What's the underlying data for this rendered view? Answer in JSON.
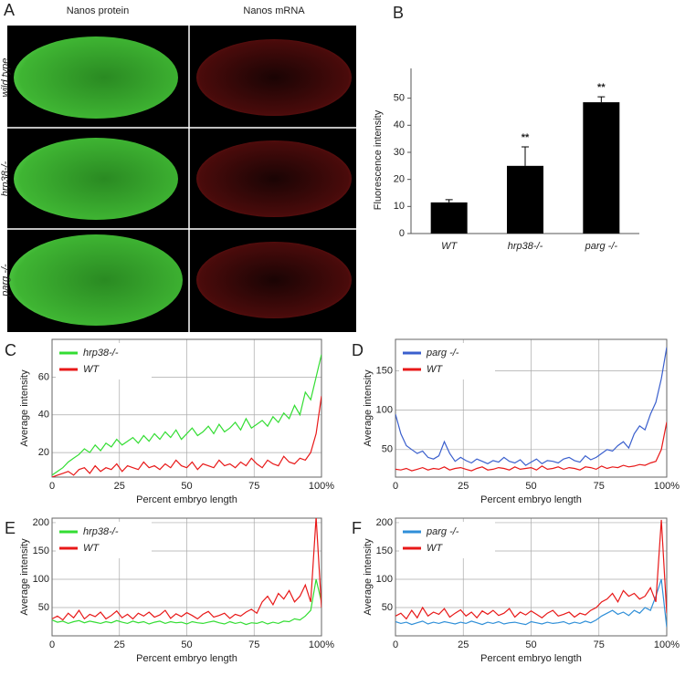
{
  "panel_a": {
    "label": "A",
    "columns": [
      "Nanos protein",
      "Nanos mRNA"
    ],
    "rows": [
      "wild type",
      "hrp38-/-",
      "parg -/-"
    ]
  },
  "chart_data": [
    {
      "type": "bar",
      "panel": "B",
      "ylabel": "Fluorescence intensity",
      "categories": [
        "WT",
        "hrp38-/-",
        "parg -/-"
      ],
      "values": [
        11.5,
        25,
        48.5
      ],
      "errors": [
        1,
        7,
        2
      ],
      "annotations": [
        null,
        "**",
        "**"
      ],
      "color": "#000000",
      "ylim": [
        0,
        61
      ],
      "yticks": [
        0,
        10,
        20,
        30,
        40,
        50
      ]
    },
    {
      "type": "line",
      "panel": "C",
      "xlabel": "Percent embryo length",
      "ylabel": "Average intensity",
      "legend": "upper left",
      "grid": true,
      "xlim": [
        0,
        100
      ],
      "xticks": [
        0,
        25,
        50,
        75,
        {
          "value": 100,
          "label": "100%"
        }
      ],
      "ylim": [
        7,
        80
      ],
      "yticks": [
        20,
        40,
        60
      ],
      "x": [
        0,
        2,
        4,
        6,
        8,
        10,
        12,
        14,
        16,
        18,
        20,
        22,
        24,
        26,
        28,
        30,
        32,
        34,
        36,
        38,
        40,
        42,
        44,
        46,
        48,
        50,
        52,
        54,
        56,
        58,
        60,
        62,
        64,
        66,
        68,
        70,
        72,
        74,
        76,
        78,
        80,
        82,
        84,
        86,
        88,
        90,
        92,
        94,
        96,
        98,
        100
      ],
      "series": [
        {
          "name": "hrp38-/-",
          "color": "#33dd33",
          "values": [
            8,
            10,
            12,
            15,
            17,
            19,
            22,
            20,
            24,
            21,
            25,
            23,
            27,
            24,
            26,
            28,
            25,
            29,
            26,
            30,
            27,
            31,
            28,
            32,
            27,
            30,
            33,
            29,
            31,
            34,
            30,
            35,
            31,
            33,
            36,
            32,
            38,
            33,
            35,
            37,
            34,
            39,
            36,
            41,
            38,
            45,
            40,
            52,
            48,
            60,
            72
          ]
        },
        {
          "name": "WT",
          "color": "#e81818",
          "values": [
            7,
            8,
            9,
            10,
            8,
            11,
            12,
            9,
            13,
            10,
            12,
            11,
            14,
            10,
            13,
            12,
            11,
            15,
            12,
            13,
            11,
            14,
            12,
            16,
            13,
            12,
            15,
            11,
            14,
            13,
            12,
            16,
            13,
            14,
            12,
            15,
            13,
            17,
            14,
            12,
            16,
            14,
            13,
            18,
            15,
            14,
            17,
            16,
            20,
            30,
            50
          ]
        }
      ]
    },
    {
      "type": "line",
      "panel": "D",
      "xlabel": "Percent embryo length",
      "ylabel": "Average intensity",
      "legend": "upper left",
      "grid": true,
      "xlim": [
        0,
        100
      ],
      "xticks": [
        0,
        25,
        50,
        75,
        {
          "value": 100,
          "label": "100%"
        }
      ],
      "ylim": [
        15,
        190
      ],
      "yticks": [
        50,
        100,
        150
      ],
      "x": [
        0,
        2,
        4,
        6,
        8,
        10,
        12,
        14,
        16,
        18,
        20,
        22,
        24,
        26,
        28,
        30,
        32,
        34,
        36,
        38,
        40,
        42,
        44,
        46,
        48,
        50,
        52,
        54,
        56,
        58,
        60,
        62,
        64,
        66,
        68,
        70,
        72,
        74,
        76,
        78,
        80,
        82,
        84,
        86,
        88,
        90,
        92,
        94,
        96,
        98,
        100
      ],
      "series": [
        {
          "name": "parg -/-",
          "color": "#3a5fcd",
          "values": [
            95,
            70,
            55,
            50,
            45,
            48,
            40,
            38,
            42,
            60,
            45,
            35,
            40,
            36,
            33,
            38,
            35,
            32,
            36,
            34,
            40,
            35,
            33,
            37,
            30,
            34,
            38,
            32,
            36,
            35,
            33,
            38,
            40,
            36,
            34,
            42,
            37,
            40,
            45,
            50,
            48,
            55,
            60,
            52,
            70,
            80,
            75,
            95,
            110,
            140,
            180
          ]
        },
        {
          "name": "WT",
          "color": "#e81818",
          "values": [
            25,
            24,
            26,
            23,
            25,
            27,
            24,
            26,
            25,
            28,
            24,
            26,
            27,
            25,
            23,
            26,
            28,
            24,
            25,
            27,
            26,
            24,
            28,
            25,
            26,
            27,
            24,
            29,
            25,
            26,
            28,
            25,
            27,
            26,
            24,
            28,
            27,
            25,
            29,
            26,
            28,
            27,
            30,
            28,
            29,
            31,
            30,
            33,
            35,
            50,
            85
          ]
        }
      ]
    },
    {
      "type": "line",
      "panel": "E",
      "xlabel": "Percent embryo length",
      "ylabel": "Average intensity",
      "legend": "upper left",
      "grid": true,
      "xlim": [
        0,
        100
      ],
      "xticks": [
        0,
        25,
        50,
        75,
        {
          "value": 100,
          "label": "100%"
        }
      ],
      "ylim": [
        0,
        208
      ],
      "yticks": [
        50,
        100,
        150,
        200
      ],
      "x": [
        0,
        2,
        4,
        6,
        8,
        10,
        12,
        14,
        16,
        18,
        20,
        22,
        24,
        26,
        28,
        30,
        32,
        34,
        36,
        38,
        40,
        42,
        44,
        46,
        48,
        50,
        52,
        54,
        56,
        58,
        60,
        62,
        64,
        66,
        68,
        70,
        72,
        74,
        76,
        78,
        80,
        82,
        84,
        86,
        88,
        90,
        92,
        94,
        96,
        98,
        100
      ],
      "series": [
        {
          "name": "hrp38-/-",
          "color": "#33dd33",
          "values": [
            28,
            24,
            26,
            22,
            25,
            27,
            23,
            26,
            24,
            22,
            25,
            23,
            27,
            24,
            22,
            26,
            23,
            25,
            21,
            24,
            26,
            22,
            25,
            23,
            24,
            21,
            25,
            23,
            22,
            24,
            26,
            23,
            21,
            25,
            22,
            24,
            20,
            23,
            22,
            25,
            21,
            24,
            22,
            26,
            25,
            30,
            28,
            35,
            45,
            100,
            60
          ]
        },
        {
          "name": "WT",
          "color": "#e81818",
          "values": [
            30,
            35,
            28,
            40,
            32,
            45,
            30,
            38,
            34,
            42,
            30,
            36,
            44,
            32,
            38,
            30,
            40,
            35,
            42,
            33,
            37,
            45,
            31,
            39,
            34,
            41,
            36,
            30,
            38,
            43,
            33,
            36,
            40,
            31,
            38,
            35,
            42,
            47,
            40,
            60,
            70,
            55,
            75,
            65,
            80,
            60,
            70,
            90,
            60,
            210,
            50
          ]
        }
      ]
    },
    {
      "type": "line",
      "panel": "F",
      "xlabel": "Percent embryo length",
      "ylabel": "Average intensity",
      "legend": "upper left",
      "grid": true,
      "xlim": [
        0,
        100
      ],
      "xticks": [
        0,
        25,
        50,
        75,
        {
          "value": 100,
          "label": "100%"
        }
      ],
      "ylim": [
        0,
        208
      ],
      "yticks": [
        50,
        100,
        150,
        200
      ],
      "x": [
        0,
        2,
        4,
        6,
        8,
        10,
        12,
        14,
        16,
        18,
        20,
        22,
        24,
        26,
        28,
        30,
        32,
        34,
        36,
        38,
        40,
        42,
        44,
        46,
        48,
        50,
        52,
        54,
        56,
        58,
        60,
        62,
        64,
        66,
        68,
        70,
        72,
        74,
        76,
        78,
        80,
        82,
        84,
        86,
        88,
        90,
        92,
        94,
        96,
        98,
        100
      ],
      "series": [
        {
          "name": "parg -/-",
          "color": "#2f8fd8",
          "values": [
            25,
            22,
            24,
            20,
            23,
            26,
            21,
            24,
            22,
            25,
            23,
            21,
            24,
            22,
            26,
            23,
            20,
            24,
            22,
            25,
            21,
            23,
            24,
            22,
            20,
            25,
            23,
            21,
            24,
            22,
            23,
            25,
            21,
            24,
            22,
            26,
            23,
            28,
            35,
            40,
            45,
            38,
            42,
            36,
            45,
            40,
            50,
            45,
            70,
            100,
            15
          ]
        },
        {
          "name": "WT",
          "color": "#e81818",
          "values": [
            35,
            40,
            30,
            45,
            32,
            50,
            35,
            42,
            38,
            48,
            33,
            40,
            46,
            35,
            42,
            32,
            44,
            38,
            45,
            36,
            40,
            48,
            33,
            42,
            37,
            44,
            38,
            32,
            40,
            45,
            35,
            38,
            42,
            33,
            40,
            37,
            45,
            50,
            60,
            65,
            75,
            60,
            80,
            70,
            75,
            65,
            70,
            85,
            60,
            205,
            40
          ]
        }
      ]
    }
  ]
}
